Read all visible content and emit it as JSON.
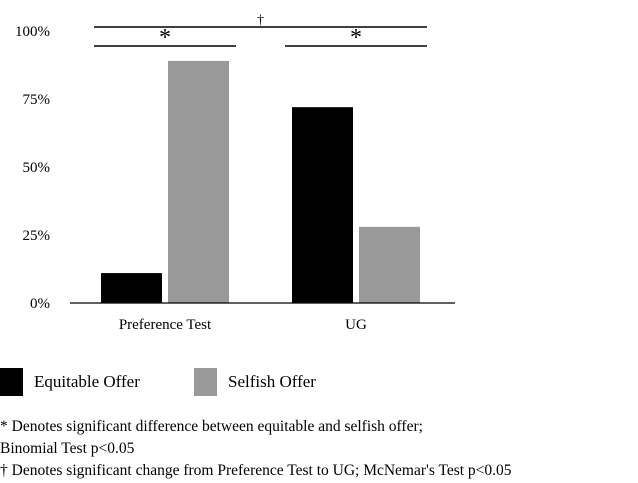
{
  "chart_data": {
    "type": "bar",
    "categories": [
      "Preference Test",
      "UG"
    ],
    "series": [
      {
        "name": "Equitable Offer",
        "values": [
          11,
          72
        ],
        "color": "#000000"
      },
      {
        "name": "Selfish Offer",
        "values": [
          89,
          28
        ],
        "color": "#999999"
      }
    ],
    "ylim": [
      0,
      100
    ],
    "yticks": [
      "0%",
      "25%",
      "50%",
      "75%",
      "100%"
    ],
    "ytick_values": [
      0,
      25,
      50,
      75,
      100
    ],
    "xlabel": "",
    "ylabel": "",
    "title": "",
    "grid": false,
    "legend_position": "bottom-left",
    "annotations": [
      {
        "mark": "*",
        "span": "Equitable Offer vs Selfish Offer within Preference Test"
      },
      {
        "mark": "*",
        "span": "Equitable Offer vs Selfish Offer within UG"
      },
      {
        "mark": "†",
        "span": "Preference Test vs UG"
      }
    ]
  },
  "footnotes": [
    "* Denotes significant difference between equitable and selfish offer;",
    "Binomial Test p<0.05",
    "† Denotes significant change from Preference Test to UG; McNemar's Test p<0.05"
  ]
}
